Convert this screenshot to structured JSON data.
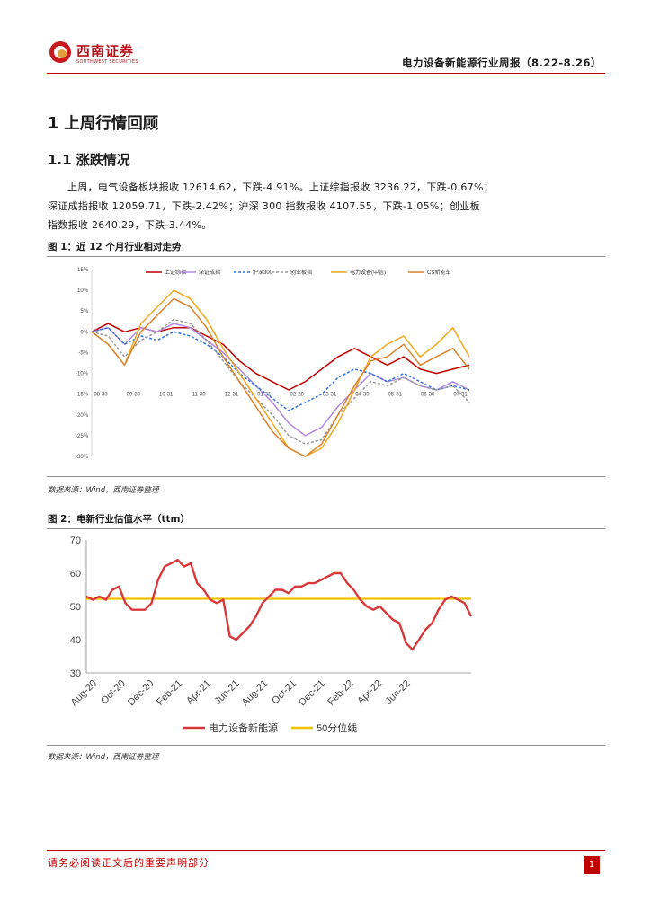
{
  "header": {
    "logo_cn": "西南证券",
    "logo_en": "SOUTHWEST SECURITIES",
    "report_title": "电力设备新能源行业周报（8.22-8.26）"
  },
  "section": {
    "h1": "1  上周行情回顾",
    "h2": "1.1 涨跌情况",
    "para_lines": [
      "上周，电气设备板块报收 12614.62，下跌-4.91%。上证综指报收 3236.22，下跌-0.67%；",
      "深证成指报收 12059.71，下跌-2.42%；沪深 300 指数报收 4107.55，下跌-1.05%；创业板",
      "指数报收 2640.29，下跌-3.44%。"
    ]
  },
  "figure1": {
    "caption": "图 1：近 12 个月行业相对走势",
    "source": "数据来源：Wind，西南证券整理"
  },
  "figure2": {
    "caption": "图 2：电新行业估值水平（ttm）",
    "source": "数据来源：Wind，西南证券整理"
  },
  "chart_data": [
    {
      "type": "line",
      "title": "",
      "xlabel": "",
      "ylabel": "",
      "x_ticks": [
        "08-30",
        "09-30",
        "10-31",
        "11-30",
        "12-31",
        "01-31",
        "02-28",
        "03-31",
        "04-30",
        "05-31",
        "06-30",
        "07-31"
      ],
      "y_ticks": [
        "15%",
        "10%",
        "5%",
        "0%",
        "-5%",
        "-10%",
        "-15%",
        "-20%",
        "-25%",
        "-30%"
      ],
      "ylim": [
        -30,
        15
      ],
      "legend_position": "top",
      "series": [
        {
          "name": "上证综指",
          "color": "#c00000",
          "dash": "solid",
          "values": [
            0,
            2,
            0,
            1,
            0,
            1,
            1,
            -1,
            -3,
            -7,
            -10,
            -12,
            -14,
            -12,
            -9,
            -6,
            -4,
            -6,
            -8,
            -6,
            -9,
            -10,
            -9,
            -8
          ]
        },
        {
          "name": "深证成指",
          "color": "#b388e0",
          "dash": "solid",
          "values": [
            0,
            1,
            -3,
            1,
            0,
            2,
            1,
            -2,
            -5,
            -9,
            -13,
            -17,
            -22,
            -25,
            -23,
            -18,
            -14,
            -10,
            -12,
            -11,
            -13,
            -14,
            -12,
            -14
          ]
        },
        {
          "name": "沪深300",
          "color": "#2e75d6",
          "dash": "dashed",
          "values": [
            0,
            1,
            -3,
            -1,
            -2,
            0,
            -1,
            -3,
            -6,
            -10,
            -13,
            -16,
            -19,
            -17,
            -15,
            -11,
            -9,
            -10,
            -12,
            -10,
            -12,
            -14,
            -13,
            -14
          ]
        },
        {
          "name": "创业板指",
          "color": "#999999",
          "dash": "dashed",
          "values": [
            0,
            -1,
            -6,
            -2,
            0,
            3,
            2,
            -2,
            -7,
            -12,
            -16,
            -20,
            -25,
            -27,
            -26,
            -20,
            -16,
            -12,
            -13,
            -11,
            -13,
            -14,
            -13,
            -17
          ]
        },
        {
          "name": "电力设备(中信)",
          "color": "#f2a81d",
          "dash": "solid",
          "values": [
            0,
            -3,
            -8,
            2,
            6,
            10,
            8,
            3,
            -4,
            -10,
            -16,
            -22,
            -28,
            -30,
            -28,
            -22,
            -14,
            -6,
            -3,
            -1,
            -6,
            -3,
            1,
            -6
          ]
        },
        {
          "name": "CS新能车",
          "color": "#d9822b",
          "dash": "solid",
          "values": [
            0,
            -3,
            -8,
            0,
            4,
            8,
            6,
            1,
            -6,
            -12,
            -18,
            -24,
            -28,
            -30,
            -27,
            -20,
            -13,
            -7,
            -6,
            -3,
            -8,
            -6,
            -4,
            -9
          ]
        }
      ]
    },
    {
      "type": "line",
      "title": "",
      "xlabel": "",
      "ylabel": "",
      "x_ticks": [
        "Aug-20",
        "Oct-20",
        "Dec-20",
        "Feb-21",
        "Apr-21",
        "Jun-21",
        "Aug-21",
        "Oct-21",
        "Dec-21",
        "Feb-22",
        "Apr-22",
        "Jun-22"
      ],
      "y_ticks": [
        "70",
        "60",
        "50",
        "40",
        "30"
      ],
      "ylim": [
        30,
        70
      ],
      "legend_position": "bottom",
      "series": [
        {
          "name": "电力设备新能源",
          "color": "#d9383a",
          "values": [
            53,
            52,
            53,
            52,
            55,
            56,
            51,
            49,
            49,
            49,
            51,
            58,
            62,
            63,
            64,
            62,
            63,
            57,
            55,
            52,
            51,
            52,
            41,
            40,
            42,
            44,
            47,
            51,
            53,
            55,
            55,
            54,
            56,
            56,
            57,
            57,
            58,
            59,
            60,
            60,
            57,
            55,
            52,
            50,
            49,
            50,
            48,
            46,
            45,
            39,
            37,
            40,
            43,
            45,
            49,
            52,
            53,
            52,
            51,
            47
          ]
        },
        {
          "name": "50分位线",
          "color": "#f2c200",
          "values": [
            52.3,
            52.3
          ]
        }
      ]
    }
  ]
}
